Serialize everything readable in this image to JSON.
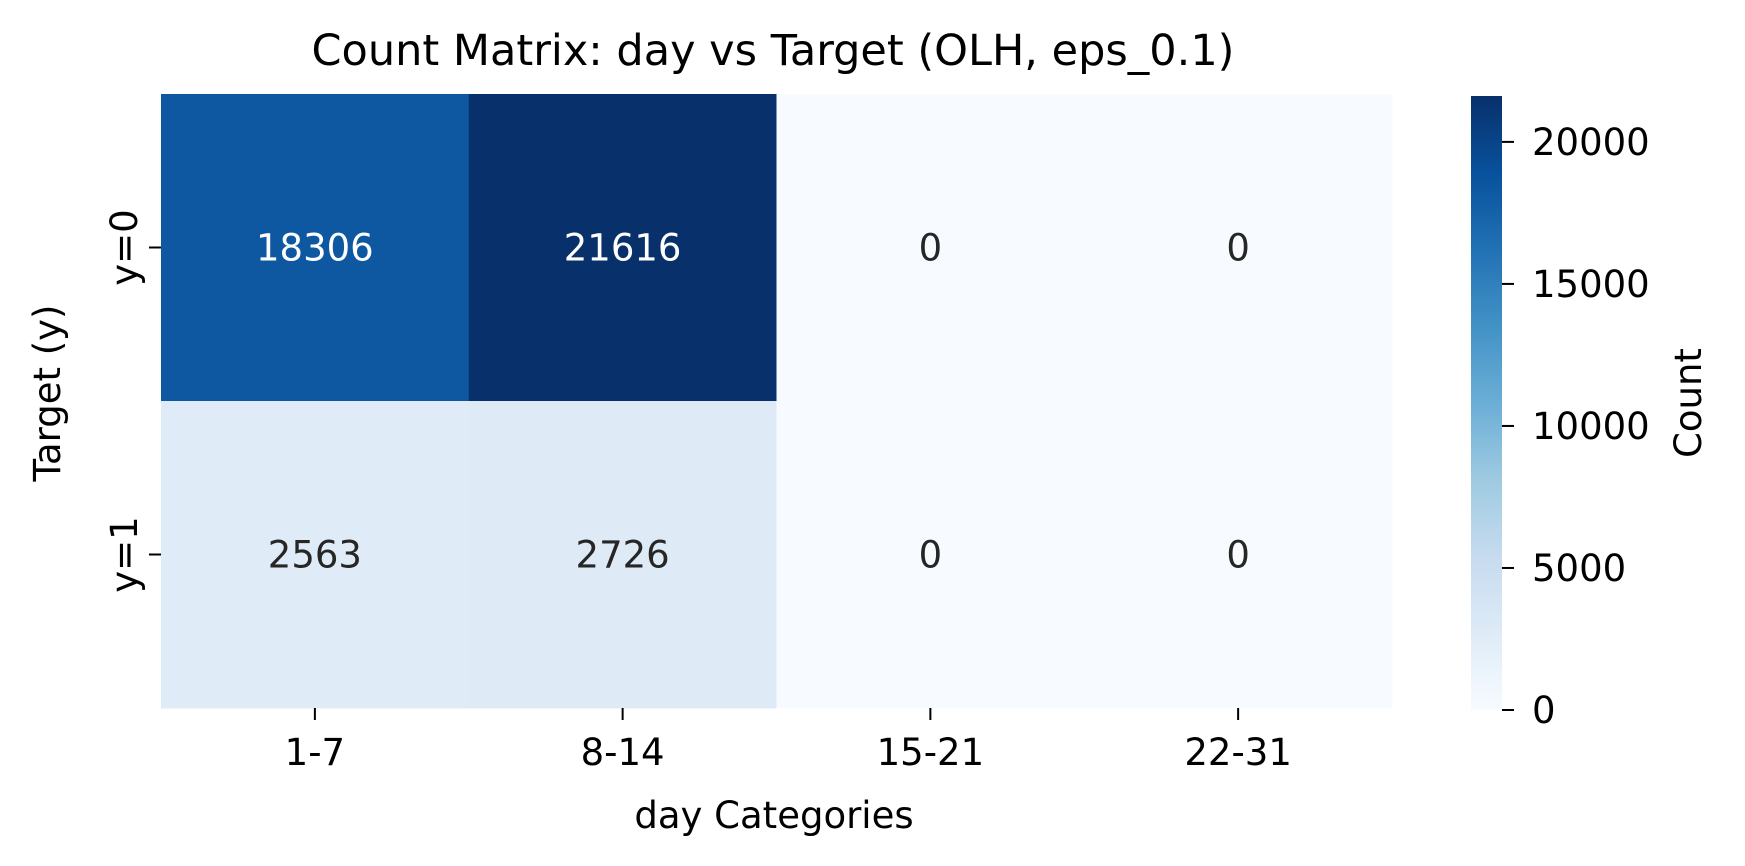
{
  "chart_data": {
    "type": "heatmap",
    "title": "Count Matrix: day vs Target (OLH, eps_0.1)",
    "xlabel": "day Categories",
    "ylabel": "Target (y)",
    "x_categories": [
      "1-7",
      "8-14",
      "15-21",
      "22-31"
    ],
    "y_categories": [
      "y=0",
      "y=1"
    ],
    "values": [
      [
        18306,
        21616,
        0,
        0
      ],
      [
        2563,
        2726,
        0,
        0
      ]
    ],
    "colormap": "Blues",
    "colorbar": {
      "label": "Count",
      "range": [
        0,
        21616
      ],
      "ticks": [
        0,
        5000,
        10000,
        15000,
        20000
      ]
    },
    "grid": false,
    "colors": {
      "low": "#f7fbff",
      "high": "#08306b",
      "annotation_light": "#ffffff",
      "annotation_dark": "#262626"
    }
  }
}
